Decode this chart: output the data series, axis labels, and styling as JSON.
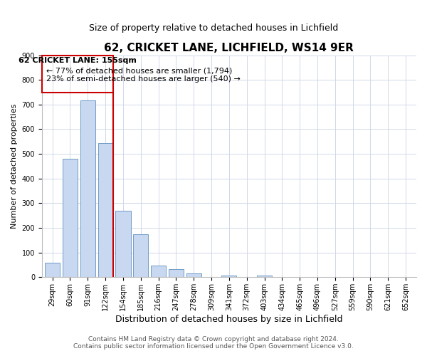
{
  "title": "62, CRICKET LANE, LICHFIELD, WS14 9ER",
  "subtitle": "Size of property relative to detached houses in Lichfield",
  "xlabel": "Distribution of detached houses by size in Lichfield",
  "ylabel": "Number of detached properties",
  "categories": [
    "29sqm",
    "60sqm",
    "91sqm",
    "122sqm",
    "154sqm",
    "185sqm",
    "216sqm",
    "247sqm",
    "278sqm",
    "309sqm",
    "341sqm",
    "372sqm",
    "403sqm",
    "434sqm",
    "465sqm",
    "496sqm",
    "527sqm",
    "559sqm",
    "590sqm",
    "621sqm",
    "652sqm"
  ],
  "values": [
    60,
    480,
    718,
    545,
    270,
    173,
    48,
    33,
    14,
    0,
    8,
    0,
    7,
    0,
    0,
    0,
    0,
    0,
    0,
    0,
    0
  ],
  "bar_color": "#c8d8f0",
  "bar_edge_color": "#6090c0",
  "annotation_text_line1": "62 CRICKET LANE: 155sqm",
  "annotation_text_line2": "← 77% of detached houses are smaller (1,794)",
  "annotation_text_line3": "23% of semi-detached houses are larger (540) →",
  "ylim": [
    0,
    900
  ],
  "yticks": [
    0,
    100,
    200,
    300,
    400,
    500,
    600,
    700,
    800,
    900
  ],
  "footnote1": "Contains HM Land Registry data © Crown copyright and database right 2024.",
  "footnote2": "Contains public sector information licensed under the Open Government Licence v3.0.",
  "background_color": "#ffffff",
  "grid_color": "#d0d8e8",
  "annotation_box_color": "#cc0000",
  "title_fontsize": 11,
  "subtitle_fontsize": 9,
  "xlabel_fontsize": 9,
  "ylabel_fontsize": 8,
  "tick_fontsize": 7,
  "annotation_fontsize": 8,
  "footnote_fontsize": 6.5,
  "marker_bar_index": 3,
  "marker_right_edge": true
}
